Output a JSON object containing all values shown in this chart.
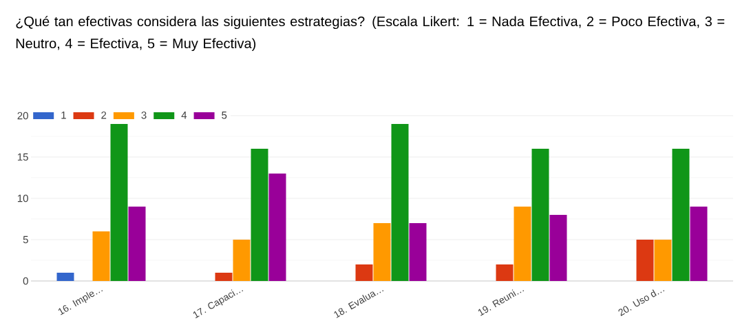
{
  "chart_data": {
    "type": "bar",
    "title": "¿Qué tan efectivas considera las siguientes estrategias? (Escala Likert: 1 = Nada Efectiva, 2 = Poco Efectiva, 3 = Neutro, 4 = Efectiva, 5 = Muy Efectiva)",
    "categories": [
      "16. Imple…",
      "17. Capaci…",
      "18. Evalua…",
      "19. Reuni…",
      "20. Uso d…"
    ],
    "series": [
      {
        "name": "1",
        "color": "#3366cc",
        "values": [
          1,
          0,
          0,
          0,
          0
        ]
      },
      {
        "name": "2",
        "color": "#dc3912",
        "values": [
          0,
          1,
          2,
          2,
          5
        ]
      },
      {
        "name": "3",
        "color": "#ff9900",
        "values": [
          6,
          5,
          7,
          9,
          5
        ]
      },
      {
        "name": "4",
        "color": "#109618",
        "values": [
          19,
          16,
          19,
          16,
          16
        ]
      },
      {
        "name": "5",
        "color": "#990099",
        "values": [
          9,
          13,
          7,
          8,
          9
        ]
      }
    ],
    "ylim": [
      0,
      20
    ],
    "yticks": [
      0,
      5,
      10,
      15,
      20
    ],
    "grid": "y",
    "legend": "top left"
  }
}
